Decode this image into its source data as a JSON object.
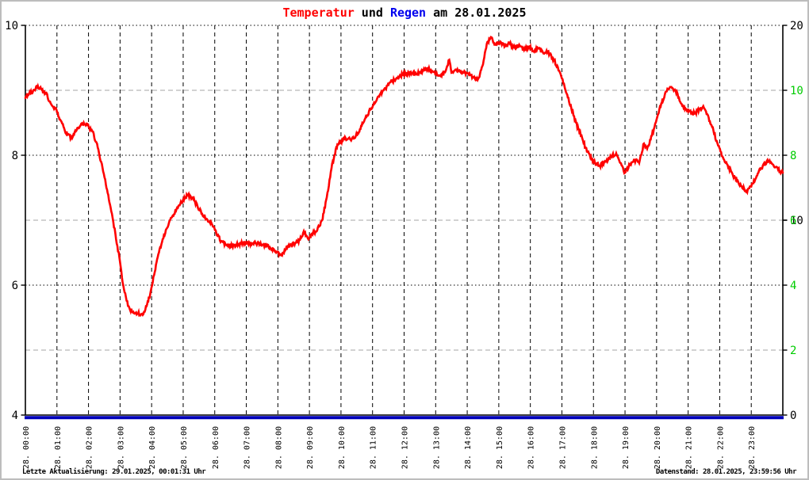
{
  "title": {
    "temperatur": "Temperatur",
    "und": " und ",
    "regen": "Regen",
    "date_suffix": " am 28.01.2025"
  },
  "footer": {
    "left": "Letzte Aktualisierung: 29.01.2025, 00:01:31 Uhr",
    "right": "Datenstand: 28.01.2025, 23:59:56 Uhr"
  },
  "colors": {
    "temperature_line": "#ff0000",
    "rain_line": "#0000bb",
    "green_axis": "#00cc00",
    "black": "#000000",
    "gray_gridline": "#b8b8b8",
    "frame_border": "#bdbdbd"
  },
  "chart_data": {
    "type": "line",
    "title": "Temperatur und Regen am 28.01.2025",
    "x_axis": {
      "hours": 24,
      "labels": [
        "28. 00:00",
        "28. 01:00",
        "28. 02:00",
        "28. 03:00",
        "28. 04:00",
        "28. 05:00",
        "28. 06:00",
        "28. 07:00",
        "28. 08:00",
        "28. 09:00",
        "28. 10:00",
        "28. 11:00",
        "28. 12:00",
        "28. 13:00",
        "28. 14:00",
        "28. 15:00",
        "28. 16:00",
        "28. 17:00",
        "28. 18:00",
        "28. 19:00",
        "28. 20:00",
        "28. 21:00",
        "28. 22:00",
        "28. 23:00"
      ]
    },
    "y_left": {
      "label": "Temperatur",
      "range": [
        4,
        10
      ],
      "tick_values": [
        4,
        6,
        8,
        10
      ],
      "color": "#000000"
    },
    "y_right_black": {
      "label": "Regen",
      "range": [
        0,
        20
      ],
      "tick_values": [
        0,
        10,
        20
      ],
      "color": "#000000"
    },
    "y_right_green": {
      "range": [
        0,
        12
      ],
      "tick_values": [
        2,
        4,
        6,
        8,
        10
      ],
      "color": "#00cc00"
    },
    "gridlines": {
      "vertical_hours_style": "black dashed",
      "dotted_left_values": [
        6,
        8,
        10
      ],
      "gray_dashed_green_values": [
        2,
        6,
        10
      ]
    },
    "legend": "none",
    "series": [
      {
        "name": "Temperatur",
        "axis": "y_left",
        "color": "#ff0000",
        "points": [
          [
            0.0,
            8.88
          ],
          [
            0.1,
            8.93
          ],
          [
            0.25,
            9.0
          ],
          [
            0.4,
            9.06
          ],
          [
            0.5,
            9.02
          ],
          [
            0.65,
            8.95
          ],
          [
            0.8,
            8.8
          ],
          [
            0.95,
            8.72
          ],
          [
            1.1,
            8.55
          ],
          [
            1.25,
            8.38
          ],
          [
            1.45,
            8.27
          ],
          [
            1.6,
            8.37
          ],
          [
            1.75,
            8.46
          ],
          [
            1.85,
            8.5
          ],
          [
            1.95,
            8.47
          ],
          [
            2.1,
            8.39
          ],
          [
            2.25,
            8.2
          ],
          [
            2.4,
            7.9
          ],
          [
            2.55,
            7.55
          ],
          [
            2.7,
            7.2
          ],
          [
            2.85,
            6.8
          ],
          [
            3.0,
            6.35
          ],
          [
            3.1,
            6.0
          ],
          [
            3.25,
            5.68
          ],
          [
            3.4,
            5.58
          ],
          [
            3.55,
            5.56
          ],
          [
            3.7,
            5.56
          ],
          [
            3.8,
            5.62
          ],
          [
            3.95,
            5.85
          ],
          [
            4.1,
            6.2
          ],
          [
            4.25,
            6.55
          ],
          [
            4.45,
            6.85
          ],
          [
            4.65,
            7.05
          ],
          [
            4.85,
            7.22
          ],
          [
            5.0,
            7.32
          ],
          [
            5.15,
            7.38
          ],
          [
            5.3,
            7.35
          ],
          [
            5.45,
            7.22
          ],
          [
            5.6,
            7.1
          ],
          [
            5.75,
            7.02
          ],
          [
            5.9,
            6.95
          ],
          [
            6.05,
            6.8
          ],
          [
            6.2,
            6.68
          ],
          [
            6.35,
            6.62
          ],
          [
            6.55,
            6.6
          ],
          [
            6.75,
            6.63
          ],
          [
            6.95,
            6.65
          ],
          [
            7.15,
            6.64
          ],
          [
            7.35,
            6.65
          ],
          [
            7.55,
            6.63
          ],
          [
            7.75,
            6.58
          ],
          [
            7.95,
            6.5
          ],
          [
            8.1,
            6.46
          ],
          [
            8.25,
            6.55
          ],
          [
            8.4,
            6.63
          ],
          [
            8.55,
            6.65
          ],
          [
            8.7,
            6.7
          ],
          [
            8.82,
            6.83
          ],
          [
            8.95,
            6.72
          ],
          [
            9.1,
            6.78
          ],
          [
            9.25,
            6.85
          ],
          [
            9.4,
            7.0
          ],
          [
            9.55,
            7.35
          ],
          [
            9.7,
            7.8
          ],
          [
            9.85,
            8.12
          ],
          [
            10.0,
            8.22
          ],
          [
            10.15,
            8.26
          ],
          [
            10.3,
            8.24
          ],
          [
            10.45,
            8.27
          ],
          [
            10.6,
            8.4
          ],
          [
            10.75,
            8.55
          ],
          [
            10.95,
            8.72
          ],
          [
            11.15,
            8.88
          ],
          [
            11.35,
            9.0
          ],
          [
            11.55,
            9.12
          ],
          [
            11.75,
            9.18
          ],
          [
            11.95,
            9.24
          ],
          [
            12.15,
            9.27
          ],
          [
            12.35,
            9.25
          ],
          [
            12.55,
            9.3
          ],
          [
            12.75,
            9.33
          ],
          [
            12.95,
            9.28
          ],
          [
            13.15,
            9.22
          ],
          [
            13.3,
            9.28
          ],
          [
            13.43,
            9.47
          ],
          [
            13.5,
            9.27
          ],
          [
            13.65,
            9.32
          ],
          [
            13.85,
            9.28
          ],
          [
            14.05,
            9.24
          ],
          [
            14.2,
            9.2
          ],
          [
            14.35,
            9.18
          ],
          [
            14.5,
            9.4
          ],
          [
            14.62,
            9.72
          ],
          [
            14.75,
            9.82
          ],
          [
            14.9,
            9.7
          ],
          [
            15.05,
            9.75
          ],
          [
            15.2,
            9.68
          ],
          [
            15.35,
            9.72
          ],
          [
            15.5,
            9.66
          ],
          [
            15.65,
            9.7
          ],
          [
            15.8,
            9.62
          ],
          [
            15.95,
            9.67
          ],
          [
            16.1,
            9.6
          ],
          [
            16.25,
            9.65
          ],
          [
            16.4,
            9.58
          ],
          [
            16.55,
            9.6
          ],
          [
            16.7,
            9.5
          ],
          [
            16.85,
            9.38
          ],
          [
            17.0,
            9.18
          ],
          [
            17.15,
            8.95
          ],
          [
            17.3,
            8.72
          ],
          [
            17.45,
            8.5
          ],
          [
            17.6,
            8.3
          ],
          [
            17.75,
            8.12
          ],
          [
            17.9,
            7.97
          ],
          [
            18.05,
            7.88
          ],
          [
            18.2,
            7.84
          ],
          [
            18.4,
            7.9
          ],
          [
            18.6,
            8.0
          ],
          [
            18.72,
            8.03
          ],
          [
            18.85,
            7.88
          ],
          [
            19.0,
            7.73
          ],
          [
            19.15,
            7.85
          ],
          [
            19.3,
            7.93
          ],
          [
            19.45,
            7.88
          ],
          [
            19.5,
            8.0
          ],
          [
            19.6,
            8.18
          ],
          [
            19.7,
            8.1
          ],
          [
            19.85,
            8.3
          ],
          [
            20.0,
            8.55
          ],
          [
            20.15,
            8.8
          ],
          [
            20.3,
            8.98
          ],
          [
            20.45,
            9.05
          ],
          [
            20.6,
            9.0
          ],
          [
            20.75,
            8.82
          ],
          [
            20.9,
            8.7
          ],
          [
            21.05,
            8.68
          ],
          [
            21.2,
            8.64
          ],
          [
            21.35,
            8.7
          ],
          [
            21.5,
            8.73
          ],
          [
            21.65,
            8.58
          ],
          [
            21.8,
            8.38
          ],
          [
            21.95,
            8.15
          ],
          [
            22.1,
            7.97
          ],
          [
            22.25,
            7.85
          ],
          [
            22.4,
            7.72
          ],
          [
            22.55,
            7.6
          ],
          [
            22.7,
            7.52
          ],
          [
            22.85,
            7.45
          ],
          [
            23.0,
            7.52
          ],
          [
            23.15,
            7.65
          ],
          [
            23.3,
            7.8
          ],
          [
            23.45,
            7.88
          ],
          [
            23.58,
            7.92
          ],
          [
            23.7,
            7.85
          ],
          [
            23.85,
            7.78
          ],
          [
            24.0,
            7.73
          ]
        ]
      },
      {
        "name": "Regen",
        "axis": "y_right_black",
        "color": "#0000bb",
        "points": [
          [
            0,
            0
          ],
          [
            24,
            0
          ]
        ]
      }
    ]
  }
}
